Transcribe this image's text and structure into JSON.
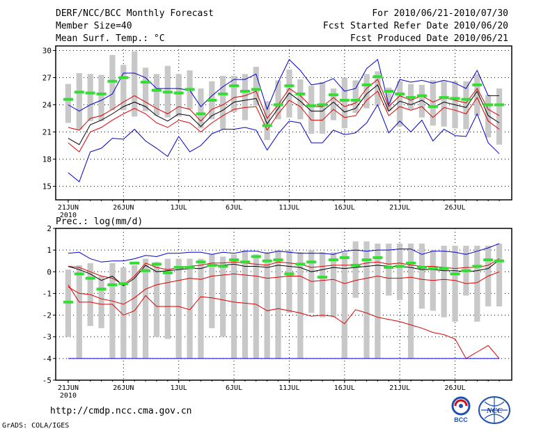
{
  "header": {
    "title": "DERF/NCC/BCC Monthly Forecast",
    "member": "Member Size=40",
    "variable": "Mean Surf. Temp.: °C",
    "period": "For 2010/06/21-2010/07/30",
    "started": "Fcst Started Refer Date 2010/06/20",
    "produced": "Fcst Produced Date 2010/06/21"
  },
  "footer": {
    "url": "http://cmdp.ncc.cma.gov.cn",
    "grads": "GrADS: COLA/IGES",
    "logo1": "BCC",
    "logo2": "NCC"
  },
  "colors": {
    "box": "#c8c8c8",
    "obs": "#33dd33",
    "mean": "#000000",
    "spread": "#dd0000",
    "envelope": "#0000cc",
    "grid": "#000000"
  },
  "chart_data": [
    {
      "type": "box",
      "title": "Mean Surf. Temp.: °C",
      "ylabel": "°C",
      "ylim": [
        13.5,
        30.5
      ],
      "yticks": [
        15,
        18,
        21,
        24,
        27,
        30
      ],
      "xticks": [
        "21JUN",
        "26JUN",
        "1JUL",
        "6JUL",
        "11JUL",
        "16JUL",
        "21JUL",
        "26JUL"
      ],
      "x_year_label": "2010",
      "grid": true,
      "days": 40,
      "series": [
        {
          "name": "max",
          "color": "blue",
          "values": [
            24,
            23.3,
            24,
            24.5,
            25.2,
            27.5,
            27.5,
            27,
            25.8,
            25.8,
            25.8,
            25.6,
            23.8,
            25,
            26,
            26.8,
            26.8,
            27.4,
            23.5,
            26.5,
            29,
            27.8,
            26.2,
            26.4,
            26.9,
            25.5,
            25.8,
            28,
            29,
            24,
            26.8,
            26.5,
            26.7,
            26.4,
            26.7,
            26.4,
            25.8,
            27.8,
            25,
            25
          ]
        },
        {
          "name": "upper",
          "color": "red",
          "values": [
            21.5,
            21.2,
            22.5,
            22.8,
            23.5,
            24.3,
            25,
            24.3,
            23.6,
            23,
            23.8,
            23.5,
            22.2,
            23.5,
            24,
            24.8,
            25,
            25.5,
            22.5,
            24,
            25.8,
            25,
            23.8,
            23.8,
            24.8,
            23.8,
            24.2,
            25.8,
            26.8,
            23.8,
            25,
            24.5,
            25,
            24.3,
            24.8,
            24.5,
            24.2,
            25.8,
            23.5,
            22.8
          ]
        },
        {
          "name": "mean",
          "color": "black",
          "values": [
            20.3,
            19.6,
            21.8,
            22.3,
            23,
            23.8,
            24.3,
            23.8,
            22.8,
            22.2,
            23,
            22.8,
            21.6,
            22.8,
            23.4,
            24.3,
            24.5,
            24.7,
            21.9,
            23.6,
            25.3,
            24.4,
            23.3,
            23.3,
            24.3,
            23.2,
            23.6,
            25.2,
            26.2,
            23.3,
            24.4,
            24,
            24.5,
            23.7,
            24.3,
            24,
            23.7,
            25.5,
            22.8,
            22
          ]
        },
        {
          "name": "lower",
          "color": "red",
          "values": [
            19.8,
            18.8,
            21,
            21.5,
            22.3,
            23,
            23.6,
            23,
            22,
            21.5,
            22.3,
            22,
            21,
            22,
            22.8,
            23.5,
            23.7,
            23.8,
            21.2,
            23,
            24.5,
            23.8,
            22.3,
            22.3,
            23.5,
            22.6,
            22.8,
            24.5,
            25.5,
            22.8,
            23.8,
            23.4,
            23.8,
            22.6,
            23.7,
            23.4,
            23,
            24.8,
            22.2,
            21.3
          ]
        },
        {
          "name": "min",
          "color": "blue",
          "values": [
            16.5,
            15.5,
            18.8,
            19.2,
            20.3,
            20.2,
            21.3,
            20,
            19.2,
            18.3,
            20.5,
            18.8,
            19.5,
            20.8,
            21.3,
            21.3,
            21.5,
            21.2,
            19,
            20.8,
            22.2,
            22,
            19.8,
            19.8,
            21.2,
            20.7,
            20.9,
            22,
            24,
            20.9,
            22.2,
            21,
            22.3,
            20,
            21.3,
            20.6,
            20.5,
            23,
            19.8,
            18.6
          ]
        },
        {
          "name": "obs",
          "color": "green",
          "values": [
            24.6,
            25.4,
            25.3,
            25.2,
            26.6,
            27,
            null,
            26.5,
            25.6,
            25.4,
            25.3,
            25.7,
            23,
            24.5,
            25.2,
            26.1,
            25.5,
            25.7,
            21.7,
            24,
            26.1,
            25.2,
            23.9,
            24,
            25.1,
            24.5,
            24.5,
            26.2,
            27.1,
            25.5,
            25.2,
            24.8,
            25,
            23.8,
            24.8,
            24.7,
            24.6,
            26.2,
            24,
            24
          ]
        }
      ],
      "boxes": [
        [
          22,
          26.3
        ],
        [
          21.3,
          27.5
        ],
        [
          22.2,
          27.4
        ],
        [
          22.2,
          27.3
        ],
        [
          23.4,
          29.5
        ],
        [
          23.4,
          28.4
        ],
        [
          22.7,
          29.9
        ],
        [
          23.3,
          28.1
        ],
        [
          22.8,
          27.4
        ],
        [
          22.6,
          28.3
        ],
        [
          22.7,
          27.4
        ],
        [
          23.5,
          27.8
        ],
        [
          21.4,
          25.8
        ],
        [
          22.4,
          26.6
        ],
        [
          21.3,
          27.2
        ],
        [
          23.2,
          27.2
        ],
        [
          22.3,
          27.4
        ],
        [
          23.9,
          28.2
        ],
        [
          20.1,
          24.4
        ],
        [
          22.4,
          26.7
        ],
        [
          22.6,
          27.9
        ],
        [
          22.4,
          26.8
        ],
        [
          20.8,
          26.1
        ],
        [
          20.8,
          26.5
        ],
        [
          22.3,
          25.8
        ],
        [
          21.4,
          27
        ],
        [
          23.1,
          26.7
        ],
        [
          23.6,
          27.4
        ],
        [
          23.9,
          27.7
        ],
        [
          23.3,
          25.9
        ],
        [
          21.6,
          26.6
        ],
        [
          23.5,
          26.3
        ],
        [
          22.6,
          26.2
        ],
        [
          21.7,
          26.7
        ],
        [
          21.6,
          26.6
        ],
        [
          21.4,
          26.6
        ],
        [
          21.3,
          26.6
        ],
        [
          22.8,
          27.4
        ],
        [
          20.4,
          25.1
        ],
        [
          19.6,
          25.8
        ]
      ]
    },
    {
      "type": "box",
      "title": "Prec.: log(mm/d)",
      "ylabel": "log(mm/d)",
      "ylim": [
        -5,
        2
      ],
      "yticks": [
        -5,
        -4,
        -3,
        -2,
        -1,
        0,
        1,
        2
      ],
      "xticks": [
        "21JUN",
        "26JUN",
        "1JUL",
        "6JUL",
        "11JUL",
        "16JUL",
        "21JUL",
        "26JUL"
      ],
      "x_year_label": "2010",
      "grid": true,
      "days": 40,
      "series": [
        {
          "name": "max",
          "color": "blue",
          "values": [
            0.85,
            0.9,
            0.6,
            0.45,
            0.5,
            0.5,
            0.6,
            0.75,
            0.7,
            0.85,
            0.85,
            0.9,
            0.9,
            0.8,
            0.9,
            0.85,
            0.95,
            0.95,
            0.85,
            0.95,
            0.9,
            0.85,
            0.85,
            0.85,
            0.8,
            0.95,
            1,
            0.95,
            1,
            1,
            1.05,
            1.05,
            0.8,
            0.95,
            0.95,
            0.9,
            0.8,
            0.95,
            1.1,
            1.3
          ]
        },
        {
          "name": "upper",
          "color": "red",
          "values": [
            0.25,
            0.2,
            0,
            -0.2,
            -0.3,
            -0.6,
            -0.2,
            0.4,
            0.2,
            0.1,
            0.2,
            0.25,
            0.3,
            0.4,
            0.4,
            0.45,
            0.4,
            0.35,
            0.3,
            0.45,
            0.4,
            0.35,
            0.2,
            0.25,
            0.3,
            0.3,
            0.3,
            0.4,
            0.45,
            0.35,
            0.4,
            0.3,
            0.25,
            0.25,
            0.2,
            0.15,
            0.2,
            0.2,
            0.3,
            0.6
          ]
        },
        {
          "name": "mean",
          "color": "black",
          "values": [
            0.25,
            0.1,
            -0.1,
            -0.4,
            -0.2,
            -0.65,
            -0.3,
            0.3,
            0,
            0.05,
            0.1,
            0.15,
            0.15,
            0.3,
            0.3,
            0.35,
            0.25,
            0.25,
            0.2,
            0.3,
            0.25,
            0.2,
            0,
            0.1,
            0.2,
            0.15,
            0.2,
            0.25,
            0.3,
            0.25,
            0.25,
            0.2,
            0.1,
            0.1,
            0.05,
            0.05,
            0,
            0.05,
            0.15,
            0.55
          ]
        },
        {
          "name": "lower",
          "color": "red",
          "values": [
            -0.7,
            -1,
            -1.05,
            -1.25,
            -1.35,
            -1.5,
            -1.2,
            -0.8,
            -0.6,
            -0.5,
            -0.4,
            -0.3,
            -0.35,
            -0.2,
            -0.15,
            -0.1,
            -0.15,
            -0.2,
            -0.3,
            -0.25,
            -0.2,
            -0.2,
            -0.45,
            -0.4,
            -0.35,
            -0.55,
            -0.4,
            -0.3,
            -0.2,
            -0.3,
            -0.3,
            -0.25,
            -0.35,
            -0.4,
            -0.35,
            -0.4,
            -0.55,
            -0.5,
            -0.2,
            0
          ]
        },
        {
          "name": "lowest",
          "color": "red",
          "values": [
            -0.6,
            -1.4,
            -1.4,
            -1.5,
            -1.5,
            -2,
            -1.8,
            -1.1,
            -1.6,
            -1.6,
            -1.6,
            -1.75,
            -1.15,
            -1.2,
            -1.3,
            -1.4,
            -1.45,
            -1.5,
            -1.8,
            -1.7,
            -1.8,
            -1.9,
            -2.05,
            -2.0,
            -2.05,
            -2.4,
            -1.75,
            -1.9,
            -2.1,
            -2.2,
            -2.3,
            -2.45,
            -2.6,
            -2.8,
            -2.9,
            -3.1,
            -4,
            -3.7,
            -3.4,
            -4
          ]
        },
        {
          "name": "min",
          "color": "blue",
          "values": [
            -4,
            -4,
            -4,
            -4,
            -4,
            -4,
            -4,
            -4,
            -4,
            -4,
            -4,
            -4,
            -4,
            -4,
            -4,
            -4,
            -4,
            -4,
            -4,
            -4,
            -4,
            -4,
            -4,
            -4,
            -4,
            -4,
            -4,
            -4,
            -4,
            -4,
            -4,
            -4,
            -4,
            -4,
            -4,
            -4,
            -4,
            -4,
            -4,
            -4
          ]
        },
        {
          "name": "obs",
          "color": "green",
          "values": [
            -1.4,
            -0.1,
            -0.3,
            -0.8,
            -0.6,
            -0.55,
            0.4,
            0.05,
            0.35,
            -0.05,
            0.2,
            0.2,
            0.45,
            0.3,
            0.25,
            0.55,
            0.45,
            0.7,
            0.5,
            0.55,
            -0.1,
            0.35,
            0.45,
            -0.25,
            0.55,
            0.65,
            0.3,
            0.55,
            0.65,
            0.2,
            0.25,
            0.4,
            0.2,
            0.15,
            0.15,
            -0.1,
            0.05,
            0.25,
            0.55,
            0.5
          ]
        }
      ],
      "boxes": [
        [
          -3,
          0.1
        ],
        [
          -4,
          0.3
        ],
        [
          -2.5,
          0.4
        ],
        [
          -2.6,
          -0.2
        ],
        [
          -4,
          0.4
        ],
        [
          -4,
          0.2
        ],
        [
          -4,
          0.3
        ],
        [
          -4,
          0.6
        ],
        [
          -3,
          0.45
        ],
        [
          -3.1,
          0.6
        ],
        [
          -4,
          0.6
        ],
        [
          -4,
          0.6
        ],
        [
          -4,
          0.6
        ],
        [
          -2.6,
          0.8
        ],
        [
          -3,
          0.7
        ],
        [
          -4,
          0.8
        ],
        [
          -4,
          1
        ],
        [
          -4,
          0.8
        ],
        [
          -4,
          0.9
        ],
        [
          -4,
          1
        ],
        [
          -1.9,
          1
        ],
        [
          -4,
          0.9
        ],
        [
          -1.9,
          1
        ],
        [
          -2.1,
          0.9
        ],
        [
          -2.1,
          0.9
        ],
        [
          -4,
          0.9
        ],
        [
          -1.2,
          1.4
        ],
        [
          -4,
          1.4
        ],
        [
          -4,
          1.3
        ],
        [
          -1.1,
          1.3
        ],
        [
          -1.3,
          1.3
        ],
        [
          -4,
          1.3
        ],
        [
          -1.7,
          1.3
        ],
        [
          -1.8,
          1.0
        ],
        [
          -2.1,
          1.2
        ],
        [
          -2.3,
          1.2
        ],
        [
          -1.1,
          1.2
        ],
        [
          -2.3,
          1.2
        ],
        [
          -1.6,
          1.2
        ],
        [
          -1.6,
          1.3
        ]
      ]
    }
  ]
}
